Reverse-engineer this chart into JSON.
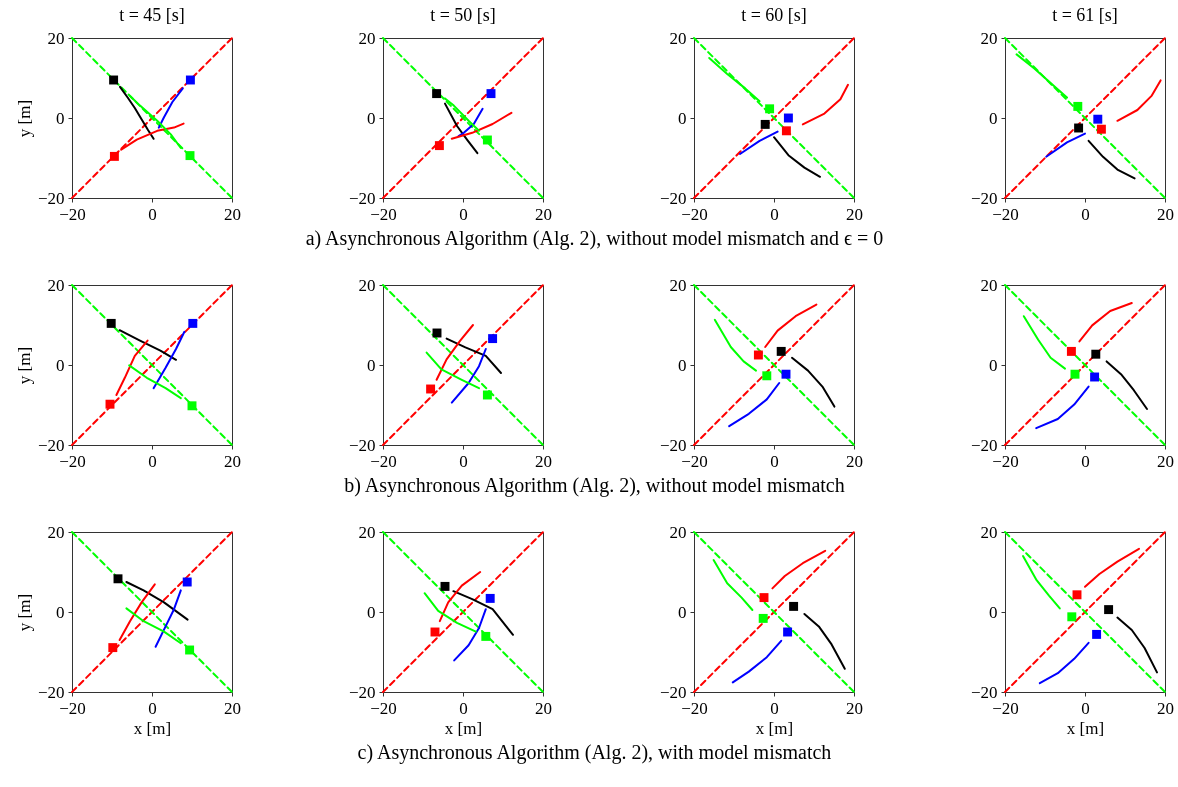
{
  "chart_data": [
    {
      "type": "line",
      "title": "t = 45 [s]",
      "ylabel": "y [m]",
      "annotations": [
        "a) Asynchronous Algorithm (Alg. 2), without model mismatch and ϵ = 0"
      ],
      "xlim": [
        -20,
        20
      ],
      "ylim": [
        -20,
        20
      ],
      "xticks": [
        -20,
        0,
        20
      ],
      "yticks": [
        -20,
        0,
        20
      ],
      "series": [
        {
          "type": "line",
          "color": "#ff0000",
          "line_style": "dashed",
          "x": [
            -20,
            20
          ],
          "values": [
            -20,
            20
          ]
        },
        {
          "type": "line",
          "color": "#00ff00",
          "line_style": "dashed",
          "x": [
            -20,
            20
          ],
          "values": [
            20,
            -20
          ]
        },
        {
          "type": "line",
          "color": "#000000",
          "x": [
            -8,
            -6,
            -4.3,
            -2.5,
            -1,
            0.4
          ],
          "values": [
            7.8,
            5,
            2.5,
            -0.5,
            -3,
            -5.2
          ]
        },
        {
          "type": "line",
          "color": "#0000ff",
          "x": [
            7.7,
            5.1,
            3,
            1.7
          ],
          "values": [
            7.4,
            4,
            0.2,
            -2.4
          ]
        },
        {
          "type": "line",
          "color": "#ff0000",
          "x": [
            -7.7,
            -3.8,
            1.3,
            5.5,
            7.9
          ],
          "values": [
            -7.9,
            -5.4,
            -3.2,
            -2.4,
            -1.4
          ]
        },
        {
          "type": "line",
          "color": "#00ff00",
          "x": [
            7.2,
            4.7,
            1.3,
            -3,
            -5.5
          ],
          "values": [
            -7.5,
            -4.1,
            -0.7,
            3.1,
            5.5
          ]
        },
        {
          "type": "scatter",
          "marker": "square",
          "color": "#000000",
          "x": [
            -9.6
          ],
          "values": [
            9.5
          ]
        },
        {
          "type": "scatter",
          "marker": "square",
          "color": "#0000ff",
          "x": [
            9.6
          ],
          "values": [
            9.5
          ]
        },
        {
          "type": "scatter",
          "marker": "square",
          "color": "#ff0000",
          "x": [
            -9.4
          ],
          "values": [
            -9.6
          ]
        },
        {
          "type": "scatter",
          "marker": "square",
          "color": "#00ff00",
          "x": [
            9.5
          ],
          "values": [
            -9.4
          ]
        }
      ]
    },
    {
      "type": "line",
      "title": "t = 50 [s]",
      "xlim": [
        -20,
        20
      ],
      "ylim": [
        -20,
        20
      ],
      "xticks": [
        -20,
        0,
        20
      ],
      "yticks": [
        -20,
        0,
        20
      ],
      "series": [
        {
          "type": "line",
          "color": "#ff0000",
          "line_style": "dashed",
          "x": [
            -20,
            20
          ],
          "values": [
            -20,
            20
          ]
        },
        {
          "type": "line",
          "color": "#00ff00",
          "line_style": "dashed",
          "x": [
            -20,
            20
          ],
          "values": [
            20,
            -20
          ]
        },
        {
          "type": "line",
          "color": "#000000",
          "x": [
            -4.5,
            -1.5,
            1,
            3.6
          ],
          "values": [
            3.6,
            -2,
            -5.4,
            -8.8
          ]
        },
        {
          "type": "line",
          "color": "#0000ff",
          "x": [
            4.9,
            2.7,
            0.2,
            -1.1
          ],
          "values": [
            2.3,
            -1.5,
            -3.7,
            -4.5
          ]
        },
        {
          "type": "line",
          "color": "#ff0000",
          "x": [
            -2.8,
            2.3,
            7.4,
            12.1
          ],
          "values": [
            -5.2,
            -3.7,
            -1.5,
            1.3
          ]
        },
        {
          "type": "line",
          "color": "#00ff00",
          "x": [
            4,
            1.4,
            -2.3,
            -4.5
          ],
          "values": [
            -3.2,
            -0.7,
            3.1,
            4.9
          ]
        },
        {
          "type": "scatter",
          "marker": "square",
          "color": "#000000",
          "x": [
            -6.6
          ],
          "values": [
            6.1
          ]
        },
        {
          "type": "scatter",
          "marker": "square",
          "color": "#0000ff",
          "x": [
            7
          ],
          "values": [
            6.1
          ]
        },
        {
          "type": "scatter",
          "marker": "square",
          "color": "#ff0000",
          "x": [
            -5.9
          ],
          "values": [
            -6.9
          ]
        },
        {
          "type": "scatter",
          "marker": "square",
          "color": "#00ff00",
          "x": [
            6.1
          ],
          "values": [
            -5.5
          ]
        }
      ]
    },
    {
      "type": "line",
      "title": "t = 60 [s]",
      "xlim": [
        -20,
        20
      ],
      "ylim": [
        -20,
        20
      ],
      "xticks": [
        -20,
        0,
        20
      ],
      "yticks": [
        -20,
        0,
        20
      ],
      "series": [
        {
          "type": "line",
          "color": "#ff0000",
          "line_style": "dashed",
          "x": [
            -20,
            20
          ],
          "values": [
            -20,
            20
          ]
        },
        {
          "type": "line",
          "color": "#00ff00",
          "line_style": "dashed",
          "x": [
            -20,
            20
          ],
          "values": [
            20,
            -20
          ]
        },
        {
          "type": "line",
          "color": "#00ff00",
          "x": [
            -3.6,
            -7.2,
            -11.7,
            -16.2
          ],
          "values": [
            4.2,
            7.4,
            11,
            15
          ]
        },
        {
          "type": "line",
          "color": "#0000ff",
          "x": [
            0.9,
            -3.6,
            -8.5
          ],
          "values": [
            -3.4,
            -5.7,
            -9
          ]
        },
        {
          "type": "line",
          "color": "#000000",
          "x": [
            0,
            3.6,
            7.6,
            11.5
          ],
          "values": [
            -4.8,
            -9.3,
            -12.4,
            -14.7
          ]
        },
        {
          "type": "line",
          "color": "#ff0000",
          "x": [
            7.2,
            12.6,
            16.6,
            18.5
          ],
          "values": [
            -1.6,
            1.1,
            4.7,
            8.3
          ]
        },
        {
          "type": "scatter",
          "marker": "square",
          "color": "#00ff00",
          "x": [
            -1.1
          ],
          "values": [
            2.3
          ]
        },
        {
          "type": "scatter",
          "marker": "square",
          "color": "#0000ff",
          "x": [
            3.6
          ],
          "values": [
            0
          ]
        },
        {
          "type": "scatter",
          "marker": "square",
          "color": "#000000",
          "x": [
            -2.2
          ],
          "values": [
            -1.6
          ]
        },
        {
          "type": "scatter",
          "marker": "square",
          "color": "#ff0000",
          "x": [
            3.1
          ],
          "values": [
            -3.2
          ]
        }
      ]
    },
    {
      "type": "line",
      "title": "t = 61 [s]",
      "xlim": [
        -20,
        20
      ],
      "ylim": [
        -20,
        20
      ],
      "xticks": [
        -20,
        0,
        20
      ],
      "yticks": [
        -20,
        0,
        20
      ],
      "series": [
        {
          "type": "line",
          "color": "#ff0000",
          "line_style": "dashed",
          "x": [
            -20,
            20
          ],
          "values": [
            -20,
            20
          ]
        },
        {
          "type": "line",
          "color": "#00ff00",
          "line_style": "dashed",
          "x": [
            -20,
            20
          ],
          "values": [
            20,
            -20
          ]
        },
        {
          "type": "line",
          "color": "#00ff00",
          "x": [
            -4.5,
            -8.1,
            -12.6,
            -17.1
          ],
          "values": [
            5.1,
            8.3,
            12.3,
            15.9
          ]
        },
        {
          "type": "line",
          "color": "#0000ff",
          "x": [
            0,
            -4.5,
            -9.7
          ],
          "values": [
            -3.9,
            -6.1,
            -9.7
          ]
        },
        {
          "type": "line",
          "color": "#000000",
          "x": [
            0.9,
            4.5,
            8.1,
            12.4
          ],
          "values": [
            -5.7,
            -9.7,
            -12.9,
            -15.1
          ]
        },
        {
          "type": "line",
          "color": "#ff0000",
          "x": [
            8.1,
            13.1,
            16.7,
            18.9
          ],
          "values": [
            -0.7,
            2,
            5.6,
            9.4
          ]
        },
        {
          "type": "scatter",
          "marker": "square",
          "color": "#00ff00",
          "x": [
            -1.8
          ],
          "values": [
            2.9
          ]
        },
        {
          "type": "scatter",
          "marker": "square",
          "color": "#0000ff",
          "x": [
            3.2
          ],
          "values": [
            -0.3
          ]
        },
        {
          "type": "scatter",
          "marker": "square",
          "color": "#000000",
          "x": [
            -1.6
          ],
          "values": [
            -2.5
          ]
        },
        {
          "type": "scatter",
          "marker": "square",
          "color": "#ff0000",
          "x": [
            4.1
          ],
          "values": [
            -2.8
          ]
        }
      ]
    },
    {
      "type": "line",
      "ylabel": "y [m]",
      "annotations": [
        "b) Asynchronous Algorithm (Alg. 2), without model mismatch"
      ],
      "xlim": [
        -20,
        20
      ],
      "ylim": [
        -20,
        20
      ],
      "xticks": [
        -20,
        0,
        20
      ],
      "yticks": [
        -20,
        0,
        20
      ],
      "series": [
        {
          "type": "line",
          "color": "#ff0000",
          "line_style": "dashed",
          "x": [
            -20,
            20
          ],
          "values": [
            -20,
            20
          ]
        },
        {
          "type": "line",
          "color": "#00ff00",
          "line_style": "dashed",
          "x": [
            -20,
            20
          ],
          "values": [
            20,
            -20
          ]
        },
        {
          "type": "line",
          "color": "#000000",
          "x": [
            -8.1,
            -3,
            2.1,
            6
          ],
          "values": [
            8.7,
            6.1,
            3.6,
            1.3
          ]
        },
        {
          "type": "line",
          "color": "#0000ff",
          "x": [
            8.1,
            6,
            3.4,
            0.4
          ],
          "values": [
            8.3,
            4,
            -0.7,
            -5.8
          ]
        },
        {
          "type": "line",
          "color": "#ff0000",
          "x": [
            -8.9,
            -6.8,
            -4.3,
            -1.1
          ],
          "values": [
            -7.5,
            -3.2,
            2.3,
            6.1
          ]
        },
        {
          "type": "line",
          "color": "#00ff00",
          "x": [
            7.2,
            3.4,
            -1.3,
            -5.7
          ],
          "values": [
            -8.3,
            -5.8,
            -3.2,
            -0.1
          ]
        },
        {
          "type": "scatter",
          "marker": "square",
          "color": "#000000",
          "x": [
            -10.2
          ],
          "values": [
            10.4
          ]
        },
        {
          "type": "scatter",
          "marker": "square",
          "color": "#0000ff",
          "x": [
            10.2
          ],
          "values": [
            10.4
          ]
        },
        {
          "type": "scatter",
          "marker": "square",
          "color": "#ff0000",
          "x": [
            -10.5
          ],
          "values": [
            -9.8
          ]
        },
        {
          "type": "scatter",
          "marker": "square",
          "color": "#00ff00",
          "x": [
            10
          ],
          "values": [
            -10.2
          ]
        }
      ]
    },
    {
      "type": "line",
      "xlim": [
        -20,
        20
      ],
      "ylim": [
        -20,
        20
      ],
      "xticks": [
        -20,
        0,
        20
      ],
      "yticks": [
        -20,
        0,
        20
      ],
      "series": [
        {
          "type": "line",
          "color": "#ff0000",
          "line_style": "dashed",
          "x": [
            -20,
            20
          ],
          "values": [
            -20,
            20
          ]
        },
        {
          "type": "line",
          "color": "#00ff00",
          "line_style": "dashed",
          "x": [
            -20,
            20
          ],
          "values": [
            20,
            -20
          ]
        },
        {
          "type": "line",
          "color": "#000000",
          "x": [
            -4.1,
            0.6,
            5.7,
            9.5
          ],
          "values": [
            6.6,
            4.4,
            2.3,
            -2
          ]
        },
        {
          "type": "line",
          "color": "#0000ff",
          "x": [
            5.7,
            4,
            1.4,
            -2.8
          ],
          "values": [
            4,
            -0.3,
            -4.5,
            -9.4
          ]
        },
        {
          "type": "line",
          "color": "#ff0000",
          "x": [
            -6.6,
            -4.1,
            -0.7,
            2.5
          ],
          "values": [
            -3.7,
            1.4,
            6.1,
            10
          ]
        },
        {
          "type": "line",
          "color": "#00ff00",
          "x": [
            4,
            -0.3,
            -5.4,
            -9.1
          ],
          "values": [
            -5.8,
            -3.7,
            -1.1,
            3.1
          ]
        },
        {
          "type": "scatter",
          "marker": "square",
          "color": "#000000",
          "x": [
            -6.5
          ],
          "values": [
            8
          ]
        },
        {
          "type": "scatter",
          "marker": "square",
          "color": "#0000ff",
          "x": [
            7.4
          ],
          "values": [
            6.6
          ]
        },
        {
          "type": "scatter",
          "marker": "square",
          "color": "#ff0000",
          "x": [
            -8.1
          ],
          "values": [
            -6
          ]
        },
        {
          "type": "scatter",
          "marker": "square",
          "color": "#00ff00",
          "x": [
            6.1
          ],
          "values": [
            -7.5
          ]
        }
      ]
    },
    {
      "type": "line",
      "xlim": [
        -20,
        20
      ],
      "ylim": [
        -20,
        20
      ],
      "xticks": [
        -20,
        0,
        20
      ],
      "yticks": [
        -20,
        0,
        20
      ],
      "series": [
        {
          "type": "line",
          "color": "#ff0000",
          "line_style": "dashed",
          "x": [
            -20,
            20
          ],
          "values": [
            -20,
            20
          ]
        },
        {
          "type": "line",
          "color": "#00ff00",
          "line_style": "dashed",
          "x": [
            -20,
            20
          ],
          "values": [
            20,
            -20
          ]
        },
        {
          "type": "line",
          "color": "#ff0000",
          "x": [
            -2.2,
            0.9,
            5.4,
            10.6
          ],
          "values": [
            4.5,
            8.6,
            12.2,
            15.1
          ]
        },
        {
          "type": "line",
          "color": "#000000",
          "x": [
            4.5,
            8.5,
            12.1,
            15.1
          ],
          "values": [
            1.8,
            -1.4,
            -5.4,
            -10.4
          ]
        },
        {
          "type": "line",
          "color": "#00ff00",
          "x": [
            -4.5,
            -7.6,
            -10.8,
            -14.8
          ],
          "values": [
            -1.4,
            0.9,
            4.5,
            11.3
          ]
        },
        {
          "type": "line",
          "color": "#0000ff",
          "x": [
            1.3,
            -1.8,
            -6.3,
            -11.2
          ],
          "values": [
            -4.5,
            -8.6,
            -12.2,
            -15.3
          ]
        },
        {
          "type": "scatter",
          "marker": "square",
          "color": "#ff0000",
          "x": [
            -3.9
          ],
          "values": [
            2.5
          ]
        },
        {
          "type": "scatter",
          "marker": "square",
          "color": "#000000",
          "x": [
            1.8
          ],
          "values": [
            3.4
          ]
        },
        {
          "type": "scatter",
          "marker": "square",
          "color": "#00ff00",
          "x": [
            -1.8
          ],
          "values": [
            -2.7
          ]
        },
        {
          "type": "scatter",
          "marker": "square",
          "color": "#0000ff",
          "x": [
            3
          ],
          "values": [
            -2.3
          ]
        }
      ]
    },
    {
      "type": "line",
      "xlim": [
        -20,
        20
      ],
      "ylim": [
        -20,
        20
      ],
      "xticks": [
        -20,
        0,
        20
      ],
      "yticks": [
        -20,
        0,
        20
      ],
      "series": [
        {
          "type": "line",
          "color": "#ff0000",
          "line_style": "dashed",
          "x": [
            -20,
            20
          ],
          "values": [
            -20,
            20
          ]
        },
        {
          "type": "line",
          "color": "#00ff00",
          "line_style": "dashed",
          "x": [
            -20,
            20
          ],
          "values": [
            20,
            -20
          ]
        },
        {
          "type": "line",
          "color": "#ff0000",
          "x": [
            -1.4,
            1.8,
            6.3,
            11.7
          ],
          "values": [
            5.9,
            9.9,
            13.5,
            15.5
          ]
        },
        {
          "type": "line",
          "color": "#000000",
          "x": [
            5.4,
            9,
            12.2,
            15.5
          ],
          "values": [
            0.9,
            -2.3,
            -6.3,
            -11
          ]
        },
        {
          "type": "line",
          "color": "#00ff00",
          "x": [
            -5,
            -8.6,
            -11.7,
            -15.3
          ],
          "values": [
            -0.9,
            1.8,
            6.3,
            12.2
          ]
        },
        {
          "type": "line",
          "color": "#0000ff",
          "x": [
            0.9,
            -2.7,
            -6.8,
            -12.2
          ],
          "values": [
            -5.4,
            -9.9,
            -13.5,
            -15.8
          ]
        },
        {
          "type": "scatter",
          "marker": "square",
          "color": "#ff0000",
          "x": [
            -3.4
          ],
          "values": [
            3.4
          ]
        },
        {
          "type": "scatter",
          "marker": "square",
          "color": "#000000",
          "x": [
            2.7
          ],
          "values": [
            2.7
          ]
        },
        {
          "type": "scatter",
          "marker": "square",
          "color": "#00ff00",
          "x": [
            -2.5
          ],
          "values": [
            -2.3
          ]
        },
        {
          "type": "scatter",
          "marker": "square",
          "color": "#0000ff",
          "x": [
            2.4
          ],
          "values": [
            -3
          ]
        }
      ]
    },
    {
      "type": "line",
      "xlabel": "x [m]",
      "ylabel": "y [m]",
      "annotations": [
        "c) Asynchronous Algorithm (Alg. 2), with model mismatch"
      ],
      "xlim": [
        -20,
        20
      ],
      "ylim": [
        -20,
        20
      ],
      "xticks": [
        -20,
        0,
        20
      ],
      "yticks": [
        -20,
        0,
        20
      ],
      "series": [
        {
          "type": "line",
          "color": "#ff0000",
          "line_style": "dashed",
          "x": [
            -20,
            20
          ],
          "values": [
            -20,
            20
          ]
        },
        {
          "type": "line",
          "color": "#00ff00",
          "line_style": "dashed",
          "x": [
            -20,
            20
          ],
          "values": [
            20,
            -20
          ]
        },
        {
          "type": "line",
          "color": "#000000",
          "x": [
            -6.4,
            -2.1,
            3,
            8.9
          ],
          "values": [
            7.5,
            5.4,
            2.4,
            -1.9
          ]
        },
        {
          "type": "line",
          "color": "#0000ff",
          "x": [
            7.2,
            5.5,
            3.4,
            0.9
          ],
          "values": [
            5.4,
            0.7,
            -3.6,
            -8.7
          ]
        },
        {
          "type": "line",
          "color": "#ff0000",
          "x": [
            -8.1,
            -5.5,
            -2.6,
            0.7
          ],
          "values": [
            -7,
            -2.3,
            2.4,
            6.9
          ]
        },
        {
          "type": "line",
          "color": "#00ff00",
          "x": [
            7.2,
            3,
            -2.1,
            -6.4
          ],
          "values": [
            -7.8,
            -4.9,
            -2.3,
            0.9
          ]
        },
        {
          "type": "scatter",
          "marker": "square",
          "color": "#000000",
          "x": [
            -8.5
          ],
          "values": [
            8.3
          ]
        },
        {
          "type": "scatter",
          "marker": "square",
          "color": "#0000ff",
          "x": [
            8.8
          ],
          "values": [
            7.5
          ]
        },
        {
          "type": "scatter",
          "marker": "square",
          "color": "#ff0000",
          "x": [
            -9.8
          ],
          "values": [
            -8.9
          ]
        },
        {
          "type": "scatter",
          "marker": "square",
          "color": "#00ff00",
          "x": [
            9.4
          ],
          "values": [
            -9.5
          ]
        }
      ]
    },
    {
      "type": "line",
      "xlabel": "x [m]",
      "xlim": [
        -20,
        20
      ],
      "ylim": [
        -20,
        20
      ],
      "xticks": [
        -20,
        0,
        20
      ],
      "yticks": [
        -20,
        0,
        20
      ],
      "series": [
        {
          "type": "line",
          "color": "#ff0000",
          "line_style": "dashed",
          "x": [
            -20,
            20
          ],
          "values": [
            -20,
            20
          ]
        },
        {
          "type": "line",
          "color": "#00ff00",
          "line_style": "dashed",
          "x": [
            -20,
            20
          ],
          "values": [
            20,
            -20
          ]
        },
        {
          "type": "line",
          "color": "#000000",
          "x": [
            -2.4,
            2.3,
            7.4,
            12.5
          ],
          "values": [
            5.2,
            3.2,
            0.7,
            -5.7
          ]
        },
        {
          "type": "line",
          "color": "#0000ff",
          "x": [
            5.7,
            4,
            1.4,
            -2.2
          ],
          "values": [
            0.7,
            -4,
            -8.3,
            -12.1
          ]
        },
        {
          "type": "line",
          "color": "#ff0000",
          "x": [
            -5.8,
            -3.7,
            -0.3,
            4.3
          ],
          "values": [
            -2.3,
            2.4,
            6.6,
            10
          ]
        },
        {
          "type": "line",
          "color": "#00ff00",
          "x": [
            3.2,
            -1.5,
            -6.2,
            -9.6
          ],
          "values": [
            -4.9,
            -2.7,
            0.3,
            4.7
          ]
        },
        {
          "type": "scatter",
          "marker": "square",
          "color": "#000000",
          "x": [
            -4.5
          ],
          "values": [
            6.4
          ]
        },
        {
          "type": "scatter",
          "marker": "square",
          "color": "#0000ff",
          "x": [
            6.8
          ],
          "values": [
            3.4
          ]
        },
        {
          "type": "scatter",
          "marker": "square",
          "color": "#ff0000",
          "x": [
            -7
          ],
          "values": [
            -5
          ]
        },
        {
          "type": "scatter",
          "marker": "square",
          "color": "#00ff00",
          "x": [
            5.7
          ],
          "values": [
            -6.1
          ]
        }
      ]
    },
    {
      "type": "line",
      "xlabel": "x [m]",
      "xlim": [
        -20,
        20
      ],
      "ylim": [
        -20,
        20
      ],
      "xticks": [
        -20,
        0,
        20
      ],
      "yticks": [
        -20,
        0,
        20
      ],
      "series": [
        {
          "type": "line",
          "color": "#ff0000",
          "line_style": "dashed",
          "x": [
            -20,
            20
          ],
          "values": [
            -20,
            20
          ]
        },
        {
          "type": "line",
          "color": "#00ff00",
          "line_style": "dashed",
          "x": [
            -20,
            20
          ],
          "values": [
            20,
            -20
          ]
        },
        {
          "type": "line",
          "color": "#ff0000",
          "x": [
            -0.4,
            2.7,
            7.2,
            12.8
          ],
          "values": [
            5.9,
            9,
            12.2,
            15.3
          ]
        },
        {
          "type": "line",
          "color": "#000000",
          "x": [
            7.6,
            11.2,
            14.4,
            17.7
          ],
          "values": [
            -0.5,
            -3.6,
            -8.1,
            -14.2
          ]
        },
        {
          "type": "line",
          "color": "#00ff00",
          "x": [
            -5.4,
            -8.1,
            -11.7,
            -15.1
          ],
          "values": [
            0.5,
            3.6,
            7.2,
            13
          ]
        },
        {
          "type": "line",
          "color": "#0000ff",
          "x": [
            1.8,
            -1.8,
            -6.3,
            -10.3
          ],
          "values": [
            -7.2,
            -11.3,
            -14.9,
            -17.6
          ]
        },
        {
          "type": "scatter",
          "marker": "square",
          "color": "#ff0000",
          "x": [
            -2.5
          ],
          "values": [
            3.6
          ]
        },
        {
          "type": "scatter",
          "marker": "square",
          "color": "#000000",
          "x": [
            4.9
          ],
          "values": [
            1.4
          ]
        },
        {
          "type": "scatter",
          "marker": "square",
          "color": "#00ff00",
          "x": [
            -2.7
          ],
          "values": [
            -1.6
          ]
        },
        {
          "type": "scatter",
          "marker": "square",
          "color": "#0000ff",
          "x": [
            3.4
          ],
          "values": [
            -5
          ]
        }
      ]
    },
    {
      "type": "line",
      "xlabel": "x [m]",
      "xlim": [
        -20,
        20
      ],
      "ylim": [
        -20,
        20
      ],
      "xticks": [
        -20,
        0,
        20
      ],
      "yticks": [
        -20,
        0,
        20
      ],
      "series": [
        {
          "type": "line",
          "color": "#ff0000",
          "line_style": "dashed",
          "x": [
            -20,
            20
          ],
          "values": [
            -20,
            20
          ]
        },
        {
          "type": "line",
          "color": "#00ff00",
          "line_style": "dashed",
          "x": [
            -20,
            20
          ],
          "values": [
            20,
            -20
          ]
        },
        {
          "type": "line",
          "color": "#ff0000",
          "x": [
            0,
            3.6,
            8.1,
            13.5
          ],
          "values": [
            6.3,
            9.5,
            12.6,
            15.8
          ]
        },
        {
          "type": "line",
          "color": "#000000",
          "x": [
            8.1,
            11.7,
            14.9,
            18
          ],
          "values": [
            -1.4,
            -4.5,
            -9,
            -15.1
          ]
        },
        {
          "type": "line",
          "color": "#00ff00",
          "x": [
            -6.3,
            -9,
            -12.2,
            -15.5
          ],
          "values": [
            0.9,
            4.1,
            8.1,
            14
          ]
        },
        {
          "type": "line",
          "color": "#0000ff",
          "x": [
            0.9,
            -2.7,
            -6.8,
            -11.3
          ],
          "values": [
            -7.7,
            -11.7,
            -15.3,
            -17.8
          ]
        },
        {
          "type": "scatter",
          "marker": "square",
          "color": "#ff0000",
          "x": [
            -2
          ],
          "values": [
            4.3
          ]
        },
        {
          "type": "scatter",
          "marker": "square",
          "color": "#000000",
          "x": [
            5.9
          ],
          "values": [
            0.6
          ]
        },
        {
          "type": "scatter",
          "marker": "square",
          "color": "#00ff00",
          "x": [
            -3.3
          ],
          "values": [
            -1.2
          ]
        },
        {
          "type": "scatter",
          "marker": "square",
          "color": "#0000ff",
          "x": [
            2.9
          ],
          "values": [
            -5.6
          ]
        }
      ]
    }
  ]
}
